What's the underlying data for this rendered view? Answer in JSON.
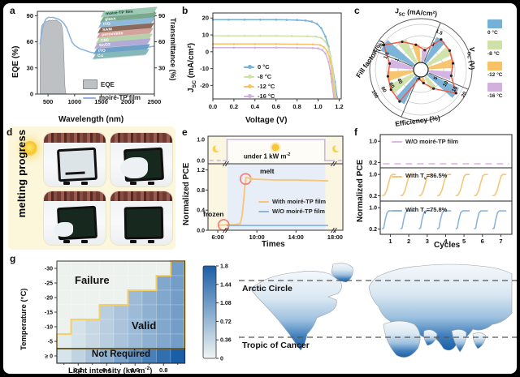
{
  "panels": {
    "a": "a",
    "b": "b",
    "c": "c",
    "d": "d",
    "e": "e",
    "f": "f",
    "g": "g"
  },
  "colors": {
    "t0": "#76b0d6",
    "t8": "#cde1a8",
    "t12": "#f7c266",
    "t16": "#d2b0de",
    "red_line": "#ef5b48",
    "ring_red": "#f2837a",
    "eqe_gray": "#bdc1c3",
    "trans_blue": "#8cb4e0",
    "orange_curve": "#f6c577",
    "blue_curve": "#8fb4dc",
    "wave_purple": "#c9b6e4",
    "dash_pink": "#dcb8e4",
    "heat_dark": "#1a5ea7",
    "heat_light": "#f0f5f3",
    "stair_yellow": "#f6cf65",
    "panel_e_bg": "#fbf6e2",
    "day_band": "#e8eef7",
    "panel_d_bg": "#fcf6da"
  },
  "chart_data": [
    {
      "panel": "a",
      "type": "area+line",
      "xlabel": "Wavelength (nm)",
      "ylabel_left": "EQE (%)",
      "ylabel_right": "Transmittance (%)",
      "xlim": [
        300,
        2500
      ],
      "ylim": [
        0,
        95
      ],
      "x_ticks": [
        500,
        1000,
        1500,
        2000,
        2500
      ],
      "y_ticks_left": [
        0,
        30,
        60,
        90
      ],
      "y_ticks_right": [
        30,
        60,
        90
      ],
      "eqe_area": {
        "name": "EQE",
        "points": [
          [
            350,
            0
          ],
          [
            355,
            55
          ],
          [
            365,
            70
          ],
          [
            380,
            78
          ],
          [
            400,
            80
          ],
          [
            430,
            82
          ],
          [
            460,
            83
          ],
          [
            500,
            84
          ],
          [
            540,
            85
          ],
          [
            560,
            84
          ],
          [
            580,
            85
          ],
          [
            620,
            84
          ],
          [
            650,
            85
          ],
          [
            680,
            84
          ],
          [
            700,
            83
          ],
          [
            730,
            82
          ],
          [
            750,
            80
          ],
          [
            770,
            75
          ],
          [
            785,
            65
          ],
          [
            795,
            50
          ],
          [
            805,
            30
          ],
          [
            815,
            12
          ],
          [
            825,
            4
          ],
          [
            835,
            1
          ],
          [
            845,
            0
          ]
        ]
      },
      "transmittance_line": {
        "name": "moiré-TP film",
        "points": [
          [
            350,
            57
          ],
          [
            370,
            66
          ],
          [
            400,
            76
          ],
          [
            430,
            82
          ],
          [
            460,
            86
          ],
          [
            500,
            88
          ],
          [
            550,
            88
          ],
          [
            600,
            88
          ],
          [
            650,
            87
          ],
          [
            700,
            86
          ],
          [
            750,
            84
          ],
          [
            800,
            81
          ],
          [
            850,
            76
          ],
          [
            900,
            68
          ],
          [
            950,
            60
          ],
          [
            1000,
            56
          ],
          [
            1100,
            52
          ],
          [
            1200,
            50
          ],
          [
            1300,
            48
          ],
          [
            1400,
            47
          ],
          [
            1500,
            46
          ],
          [
            1600,
            45
          ],
          [
            1700,
            45
          ],
          [
            1800,
            46
          ],
          [
            1900,
            47
          ],
          [
            2000,
            48
          ],
          [
            2100,
            50
          ],
          [
            2200,
            51
          ],
          [
            2300,
            52
          ],
          [
            2400,
            54
          ],
          [
            2500,
            55
          ]
        ]
      },
      "legend": [
        "EQE",
        "moiré-TP film"
      ],
      "inset": {
        "layers": [
          {
            "label": "moiré-TP film",
            "color": "#9ccab4",
            "text": "#0b3b2e"
          },
          {
            "label": "glass",
            "color": "#79a98a",
            "text": "#ffffff"
          },
          {
            "label": "ITO",
            "color": "#8fb9d8",
            "text": "#ffffff"
          },
          {
            "label": "SAM",
            "color": "#8a6a5a",
            "text": "#ffffff"
          },
          {
            "label": "perovskite",
            "color": "#d4a49c",
            "text": "#ffffff"
          },
          {
            "label": "C60",
            "color": "#b7d2aa",
            "text": "#ffffff"
          },
          {
            "label": "SnO2",
            "color": "#b4aad8",
            "text": "#ffffff"
          },
          {
            "label": "ITO",
            "color": "#6fa0c8",
            "text": "#ffffff"
          },
          {
            "label": "Cu",
            "color": "#84b8ba",
            "text": "#ffffff"
          }
        ]
      }
    },
    {
      "panel": "b",
      "type": "line",
      "xlabel": "Voltage  (V)",
      "ylabel": {
        "base": "J",
        "sub": "SC",
        "unit": " (mA/cm²)"
      },
      "xlim": [
        0,
        1.22
      ],
      "ylim": [
        -28,
        23
      ],
      "x_ticks": [
        "0.0",
        "0.2",
        "0.4",
        "0.6",
        "0.8",
        "1.0",
        "1.2"
      ],
      "y_ticks": [
        20,
        10,
        0,
        -10,
        -20
      ],
      "series": [
        {
          "name": "0 °C",
          "color_key": "t0",
          "points": [
            [
              0,
              19
            ],
            [
              0.15,
              19
            ],
            [
              0.3,
              19
            ],
            [
              0.45,
              19
            ],
            [
              0.6,
              19
            ],
            [
              0.7,
              18.9
            ],
            [
              0.8,
              18.8
            ],
            [
              0.88,
              18.5
            ],
            [
              0.94,
              17.9
            ],
            [
              0.99,
              16.5
            ],
            [
              1.03,
              14
            ],
            [
              1.07,
              9
            ],
            [
              1.1,
              3
            ],
            [
              1.12,
              -3
            ],
            [
              1.14,
              -10
            ],
            [
              1.16,
              -18
            ],
            [
              1.18,
              -27
            ]
          ]
        },
        {
          "name": "-8 °C",
          "color_key": "t8",
          "points": [
            [
              0,
              9.4
            ],
            [
              0.15,
              9.4
            ],
            [
              0.3,
              9.4
            ],
            [
              0.45,
              9.4
            ],
            [
              0.6,
              9.4
            ],
            [
              0.75,
              9.3
            ],
            [
              0.9,
              9.2
            ],
            [
              0.98,
              9.0
            ],
            [
              1.03,
              8.2
            ],
            [
              1.07,
              6
            ],
            [
              1.1,
              2
            ],
            [
              1.12,
              -3
            ],
            [
              1.14,
              -10
            ],
            [
              1.15,
              -16
            ],
            [
              1.17,
              -27
            ]
          ]
        },
        {
          "name": "-12 °C",
          "color_key": "t12",
          "points": [
            [
              0,
              4.6
            ],
            [
              0.2,
              4.6
            ],
            [
              0.4,
              4.6
            ],
            [
              0.6,
              4.6
            ],
            [
              0.8,
              4.5
            ],
            [
              0.95,
              4.4
            ],
            [
              1.02,
              4.0
            ],
            [
              1.06,
              2.5
            ],
            [
              1.09,
              0
            ],
            [
              1.11,
              -4
            ],
            [
              1.13,
              -11
            ],
            [
              1.14,
              -17
            ],
            [
              1.16,
              -27
            ]
          ]
        },
        {
          "name": "-16 °C",
          "color_key": "t16",
          "points": [
            [
              0,
              2.4
            ],
            [
              0.2,
              2.4
            ],
            [
              0.4,
              2.4
            ],
            [
              0.6,
              2.4
            ],
            [
              0.8,
              2.3
            ],
            [
              0.95,
              2.2
            ],
            [
              1.0,
              2.0
            ],
            [
              1.04,
              1.0
            ],
            [
              1.07,
              -1
            ],
            [
              1.1,
              -6
            ],
            [
              1.12,
              -13
            ],
            [
              1.13,
              -18
            ],
            [
              1.15,
              -27
            ]
          ]
        }
      ]
    },
    {
      "panel": "c",
      "type": "polar",
      "axis_labels": {
        "jsc": {
          "base": "J",
          "sub": "SC",
          "unit": " (mA/cm²)"
        },
        "voc": {
          "base": "V",
          "sub": "OC",
          "unit": " (V)"
        },
        "ff": "Fill factor (%)",
        "eff": "Efficiency (%)"
      },
      "axis_ticks": {
        "jsc": [
          "1",
          "1.5",
          "2"
        ],
        "voc": [
          "1",
          "1.5"
        ],
        "ff": [
          "40",
          "60",
          "80",
          "100"
        ],
        "eff": [
          "5",
          "10",
          "15",
          "20"
        ]
      },
      "series_names": [
        "0 °C",
        "-8 °C",
        "-12 °C",
        "-16 °C"
      ],
      "series_color_keys": [
        "t0",
        "t8",
        "t12",
        "t16"
      ],
      "values_norm": {
        "jsc": [
          0.98,
          0.74,
          0.56,
          0.44
        ],
        "voc": [
          0.8,
          0.76,
          0.72,
          0.68
        ],
        "eff": [
          0.93,
          0.5,
          0.3,
          0.2
        ],
        "ff": [
          0.84,
          0.79,
          0.74,
          0.7
        ]
      }
    },
    {
      "panel": "e",
      "type": "line",
      "xlabel": "Times",
      "ylabel": "Normalized PCE",
      "x_ticks": [
        {
          "v": 6,
          "label": "6:00"
        },
        {
          "v": 10,
          "label": "10:00"
        },
        {
          "v": 14,
          "label": "14:00"
        },
        {
          "v": 18,
          "label": "18:00"
        }
      ],
      "top_y_ticks": [
        "1.0",
        "0.0"
      ],
      "bottom_y_ticks": [
        "1.2",
        "0.8",
        "0.4",
        "0.0"
      ],
      "day_span": [
        7,
        17
      ],
      "irradiance_label": {
        "pre": "under 1 kW m",
        "sup": "-2"
      },
      "annotations": {
        "melt": "melt",
        "frozen": "frozen"
      },
      "legend": [
        {
          "label": "With moiré-TP film",
          "color_key": "orange_curve"
        },
        {
          "label": "W/O moiré-TP film",
          "color_key": "blue_curve"
        }
      ],
      "with_film": [
        [
          6.1,
          0.1
        ],
        [
          6.6,
          0.105
        ],
        [
          7.2,
          0.11
        ],
        [
          7.8,
          0.115
        ],
        [
          8.3,
          0.13
        ],
        [
          8.5,
          0.3
        ],
        [
          8.65,
          0.6
        ],
        [
          8.78,
          0.9
        ],
        [
          8.9,
          1.05
        ],
        [
          9.1,
          1.04
        ],
        [
          9.5,
          1.02
        ],
        [
          10.5,
          1.01
        ],
        [
          12,
          1.0
        ],
        [
          14,
          1.0
        ],
        [
          16,
          0.99
        ],
        [
          17.3,
          0.98
        ]
      ],
      "without_film": [
        [
          6.9,
          0.095
        ],
        [
          17.3,
          0.095
        ]
      ]
    },
    {
      "panel": "f",
      "type": "line",
      "xlabel": "Cycles",
      "ylabel": "Normalized PCE",
      "x_ticks": [
        "1",
        "2",
        "3",
        "4",
        "5",
        "6",
        "7"
      ],
      "y_ticks": [
        "1.0",
        "0.2"
      ],
      "subpanels": [
        {
          "kind": "flat",
          "label_pre": "W/O moiré-TP film",
          "label_sub": "",
          "label_post": "",
          "color_key": "dash_pink",
          "flat_value": 0.15
        },
        {
          "kind": "cycles",
          "label_pre": "With T",
          "label_sub": "v",
          "label_post": "=86.5%",
          "color_key": "orange_curve",
          "base": 0.2,
          "peak": 1.0,
          "cycles": 7
        },
        {
          "kind": "cycles",
          "label_pre": "With T",
          "label_sub": "v",
          "label_post": "=75.8%",
          "color_key": "blue_curve",
          "base": 0.2,
          "peak": 0.88,
          "cycles": 7
        }
      ]
    },
    {
      "panel": "g",
      "type": "heatmap",
      "xlabel": {
        "pre": "Light intensity (kw m",
        "sup": "-2",
        "post": ")"
      },
      "ylabel": "Temperature (°C)",
      "temps": [
        "-30",
        "-25",
        "-20",
        "-15",
        "-10",
        "-5",
        "≥ 0"
      ],
      "light_ticks": [
        0.2,
        0.4,
        0.6,
        0.8
      ],
      "light_minor_ticks": [
        0.1,
        0.3,
        0.5,
        0.7,
        0.9
      ],
      "xlim": [
        0.05,
        0.95
      ],
      "column_values": [
        0.2,
        0.4,
        0.6,
        0.8,
        1.0,
        1.2,
        1.4,
        1.6,
        1.8
      ],
      "valid_floor_temp": [
        "-5",
        "-10",
        "-10",
        "-15",
        "-15",
        "-20",
        "-20",
        "-25",
        "-30"
      ],
      "regions": {
        "failure": "Failure",
        "valid": "Valid",
        "not_required": "Not Required"
      },
      "colorbar_ticks": [
        "1.8",
        "1.44",
        "1.08",
        "0.72",
        "0.36",
        "0"
      ],
      "colorbar_range": [
        0,
        1.8
      ]
    }
  ],
  "panel_d": {
    "caption": "melting progress"
  },
  "map": {
    "labels": {
      "arctic": "Arctic Circle",
      "tropic": "Tropic of Cancer"
    }
  }
}
